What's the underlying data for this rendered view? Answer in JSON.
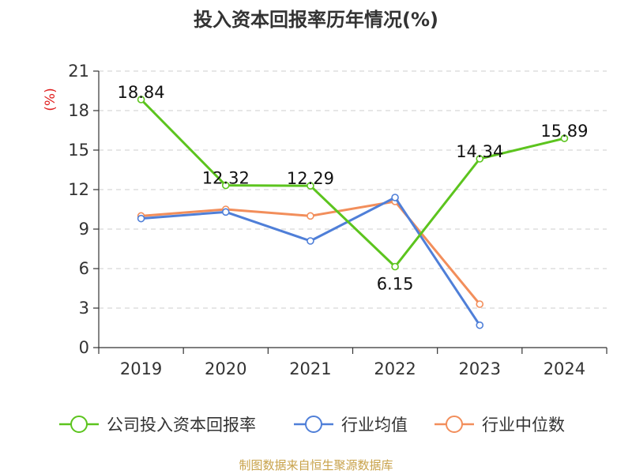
{
  "chart_data": {
    "type": "line",
    "title": "投入资本回报率历年情况(%)",
    "ylabel": "(%)",
    "categories": [
      "2019",
      "2020",
      "2021",
      "2022",
      "2023",
      "2024"
    ],
    "ylim": [
      0,
      21
    ],
    "yticks": [
      0,
      3,
      6,
      9,
      12,
      15,
      18,
      21
    ],
    "yticks_labels": [
      "0",
      "3",
      "6",
      "9",
      "12",
      "15",
      "18",
      "21"
    ],
    "grid": true,
    "legend_position": "bottom",
    "series": [
      {
        "name": "公司投入资本回报率",
        "color": "#5cc41e",
        "values": [
          18.84,
          12.32,
          12.29,
          6.15,
          14.34,
          15.89
        ],
        "labels": [
          "18.84",
          "12.32",
          "12.29",
          "6.15",
          "14.34",
          "15.89"
        ]
      },
      {
        "name": "行业均值",
        "color": "#4f7fd8",
        "values": [
          9.8,
          10.3,
          8.1,
          11.4,
          1.7,
          null
        ]
      },
      {
        "name": "行业中位数",
        "color": "#f28e5b",
        "values": [
          10.0,
          10.5,
          10.0,
          11.1,
          3.3,
          null
        ]
      }
    ],
    "source": "制图数据来自恒生聚源数据库"
  }
}
